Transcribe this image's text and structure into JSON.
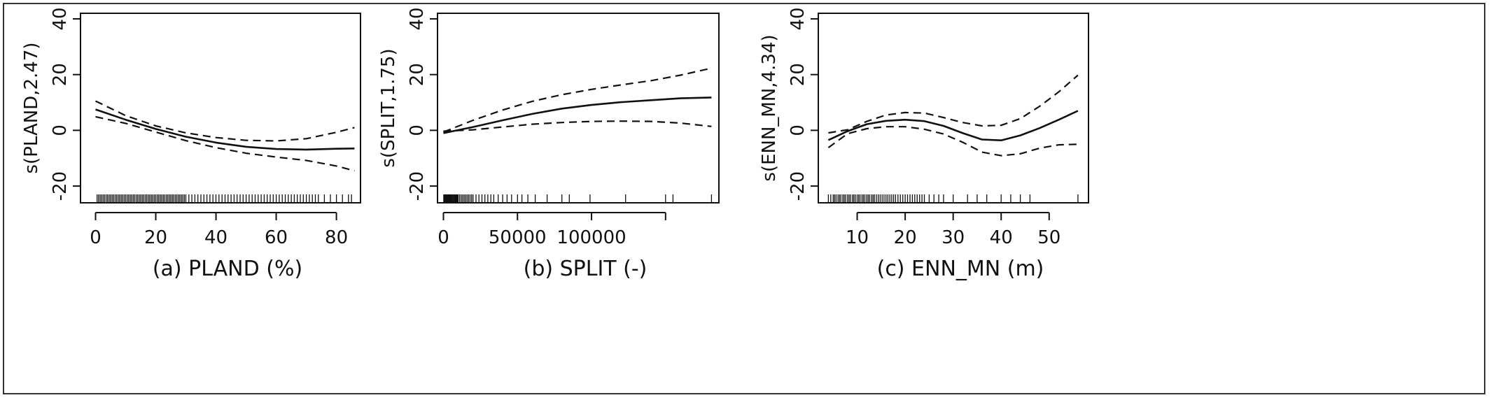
{
  "chart_data": [
    {
      "type": "line",
      "caption": "(a) PLAND (%)",
      "ylabel": "s(PLAND,2.47)",
      "xlim": [
        -5,
        88
      ],
      "ylim": [
        -26,
        42
      ],
      "xticks": [
        0,
        20,
        40,
        60,
        80
      ],
      "xtick_labels": [
        "0",
        "20",
        "40",
        "60",
        "80"
      ],
      "yticks": [
        -20,
        0,
        20,
        40
      ],
      "ytick_labels": [
        "-20",
        "0",
        "20",
        "40"
      ],
      "series": [
        {
          "style": "solid",
          "x": [
            0,
            10,
            20,
            30,
            40,
            50,
            60,
            70,
            80,
            86
          ],
          "y": [
            7.5,
            3.8,
            0.5,
            -2.3,
            -4.4,
            -5.9,
            -6.7,
            -6.9,
            -6.6,
            -6.5
          ]
        },
        {
          "style": "dashed",
          "x": [
            0,
            10,
            20,
            30,
            40,
            50,
            60,
            70,
            80,
            86
          ],
          "y": [
            10.5,
            5.3,
            1.6,
            -0.9,
            -2.6,
            -3.6,
            -3.8,
            -3.0,
            -0.7,
            1.0
          ]
        },
        {
          "style": "dashed",
          "x": [
            0,
            10,
            20,
            30,
            40,
            50,
            60,
            70,
            80,
            86
          ],
          "y": [
            4.9,
            2.5,
            -0.6,
            -3.7,
            -6.2,
            -8.2,
            -9.6,
            -10.8,
            -12.8,
            -14.5
          ]
        }
      ],
      "rug": [
        0.5,
        1,
        1.5,
        2,
        2.5,
        3,
        3.5,
        4,
        4.5,
        5,
        5.5,
        6,
        6.5,
        7,
        7.5,
        8,
        8.5,
        9,
        9.5,
        10,
        10.5,
        11,
        11.5,
        12,
        12.5,
        13,
        13.5,
        14,
        14.5,
        15,
        15.5,
        16,
        16.5,
        17,
        17.5,
        18,
        18.5,
        19,
        19.5,
        20,
        20.5,
        21,
        21.5,
        22,
        22.5,
        23,
        23.5,
        24,
        24.5,
        25,
        25.5,
        26,
        26.5,
        27,
        27.5,
        28,
        28.5,
        29,
        29.5,
        30,
        31,
        32,
        33,
        34,
        35,
        36,
        37,
        38,
        39,
        40,
        41,
        42,
        43,
        44,
        45,
        46,
        47,
        48,
        49,
        50,
        51,
        52,
        53,
        54,
        55,
        56,
        57,
        58,
        59,
        60,
        61,
        62,
        63,
        64,
        65,
        66,
        67,
        68,
        69,
        70,
        71,
        72,
        73,
        74,
        76,
        78,
        80,
        82,
        84,
        85
      ]
    },
    {
      "type": "line",
      "caption": "(b) SPLIT (-)",
      "ylabel": "s(SPLIT,1.75)",
      "xlim": [
        -4000,
        186000
      ],
      "ylim": [
        -26,
        42
      ],
      "xticks": [
        0,
        50000,
        100000,
        150000
      ],
      "xtick_labels": [
        "0",
        "50000",
        "100000",
        ""
      ],
      "yticks": [
        -20,
        0,
        20,
        40
      ],
      "ytick_labels": [
        "-20",
        "0",
        "20",
        "40"
      ],
      "series": [
        {
          "style": "solid",
          "x": [
            0,
            20000,
            40000,
            60000,
            80000,
            100000,
            120000,
            140000,
            160000,
            181000
          ],
          "y": [
            -1.0,
            1.2,
            3.6,
            5.9,
            7.8,
            9.1,
            10.1,
            10.8,
            11.5,
            11.8
          ]
        },
        {
          "style": "dashed",
          "x": [
            0,
            20000,
            40000,
            60000,
            80000,
            100000,
            120000,
            140000,
            160000,
            181000
          ],
          "y": [
            -0.6,
            3.6,
            7.3,
            10.4,
            12.8,
            14.7,
            16.3,
            17.8,
            19.8,
            22.3
          ]
        },
        {
          "style": "dashed",
          "x": [
            0,
            20000,
            40000,
            60000,
            80000,
            100000,
            120000,
            140000,
            160000,
            181000
          ],
          "y": [
            -0.3,
            0.2,
            1.2,
            2.2,
            2.8,
            3.2,
            3.3,
            3.2,
            2.6,
            1.4
          ]
        }
      ],
      "rug": [
        200,
        500,
        800,
        1000,
        1300,
        1600,
        2000,
        2400,
        2800,
        3200,
        3600,
        4000,
        4500,
        5000,
        5500,
        6000,
        6500,
        7000,
        7500,
        8000,
        8500,
        9000,
        9500,
        10000,
        11000,
        12000,
        13000,
        14000,
        15000,
        16000,
        17000,
        18000,
        19000,
        20000,
        22000,
        24000,
        26000,
        28000,
        30000,
        32000,
        34000,
        37000,
        40000,
        43000,
        46000,
        50000,
        53000,
        57000,
        62000,
        70000,
        80000,
        85000,
        99000,
        123000,
        150000,
        155000,
        181000
      ]
    },
    {
      "type": "line",
      "caption": "(c) ENN_MN (m)",
      "ylabel": "s(ENN_MN,4.34)",
      "xlim": [
        1.9,
        58.2
      ],
      "ylim": [
        -26,
        42
      ],
      "xticks": [
        10,
        20,
        30,
        40,
        50
      ],
      "xtick_labels": [
        "10",
        "20",
        "30",
        "40",
        "50"
      ],
      "yticks": [
        -20,
        0,
        20,
        40
      ],
      "ytick_labels": [
        "-20",
        "0",
        "20",
        "40"
      ],
      "series": [
        {
          "style": "solid",
          "x": [
            4,
            8,
            12,
            16,
            20,
            24,
            28,
            32,
            36,
            40,
            44,
            48,
            52,
            56
          ],
          "y": [
            -3.5,
            -0.3,
            2.2,
            3.4,
            3.8,
            3.3,
            1.6,
            -1.0,
            -3.3,
            -3.6,
            -1.8,
            0.8,
            3.8,
            7.0
          ]
        },
        {
          "style": "dashed",
          "x": [
            4,
            8,
            12,
            16,
            20,
            24,
            28,
            32,
            36,
            40,
            44,
            48,
            52,
            56
          ],
          "y": [
            -0.9,
            0.2,
            3.2,
            5.5,
            6.4,
            6.2,
            4.6,
            2.8,
            1.6,
            1.8,
            4.2,
            8.6,
            13.8,
            19.8
          ]
        },
        {
          "style": "dashed",
          "x": [
            4,
            8,
            12,
            16,
            20,
            24,
            28,
            32,
            36,
            40,
            44,
            48,
            52,
            56
          ],
          "y": [
            -6.2,
            -1.2,
            0.6,
            1.3,
            1.3,
            0.4,
            -1.3,
            -4.3,
            -7.8,
            -9.1,
            -8.4,
            -6.4,
            -5.2,
            -5.0
          ]
        }
      ],
      "rug": [
        4,
        4.5,
        5,
        5.3,
        5.6,
        6,
        6.3,
        6.6,
        7,
        7.3,
        7.6,
        8,
        8.3,
        8.6,
        9,
        9.3,
        9.6,
        10,
        10.3,
        10.6,
        11,
        11.3,
        11.6,
        12,
        12.3,
        12.6,
        13,
        13.3,
        13.6,
        14,
        14.4,
        14.8,
        15.2,
        15.6,
        16,
        16.4,
        16.8,
        17.2,
        17.6,
        18,
        18.5,
        19,
        19.5,
        20,
        20.5,
        21,
        21.5,
        22,
        22.5,
        23,
        23.5,
        24,
        25,
        26,
        27,
        28,
        30,
        33,
        35,
        37,
        40,
        42,
        44,
        46,
        56
      ]
    }
  ]
}
